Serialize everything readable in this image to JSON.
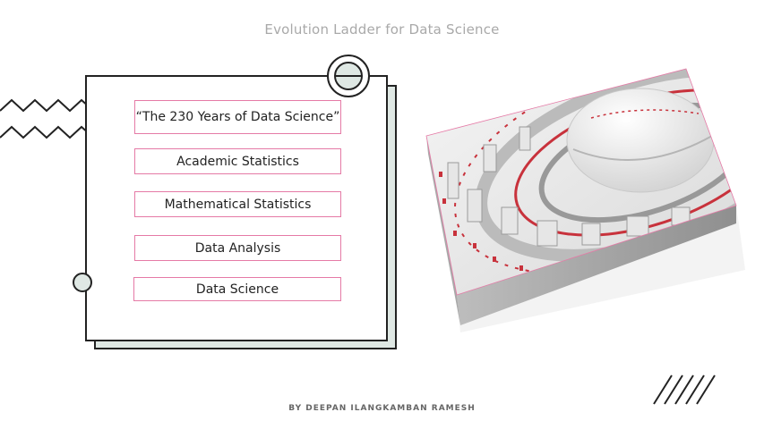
{
  "header": {
    "title": "Evolution Ladder for Data Science"
  },
  "ladder": {
    "steps": [
      {
        "label": "“The 230 Years of Data Science”"
      },
      {
        "label": "Academic Statistics"
      },
      {
        "label": "Mathematical Statistics"
      },
      {
        "label": "Data Analysis"
      },
      {
        "label": "Data Science"
      }
    ]
  },
  "footer": {
    "byline": "BY DEEPAN ILANGKAMBAN RAMESH"
  },
  "colors": {
    "accent": "#e57aa6",
    "mint": "#dfe8e4",
    "outline": "#222222",
    "title": "#a9a9a9",
    "model_red": "#c8323c"
  },
  "icons": {
    "zigzag": "zigzag-decoration-icon",
    "ring": "ring-icon",
    "dot": "circle-dot-icon",
    "hatch": "diagonal-hatch-icon",
    "image": "futuristic-city-model-image"
  }
}
